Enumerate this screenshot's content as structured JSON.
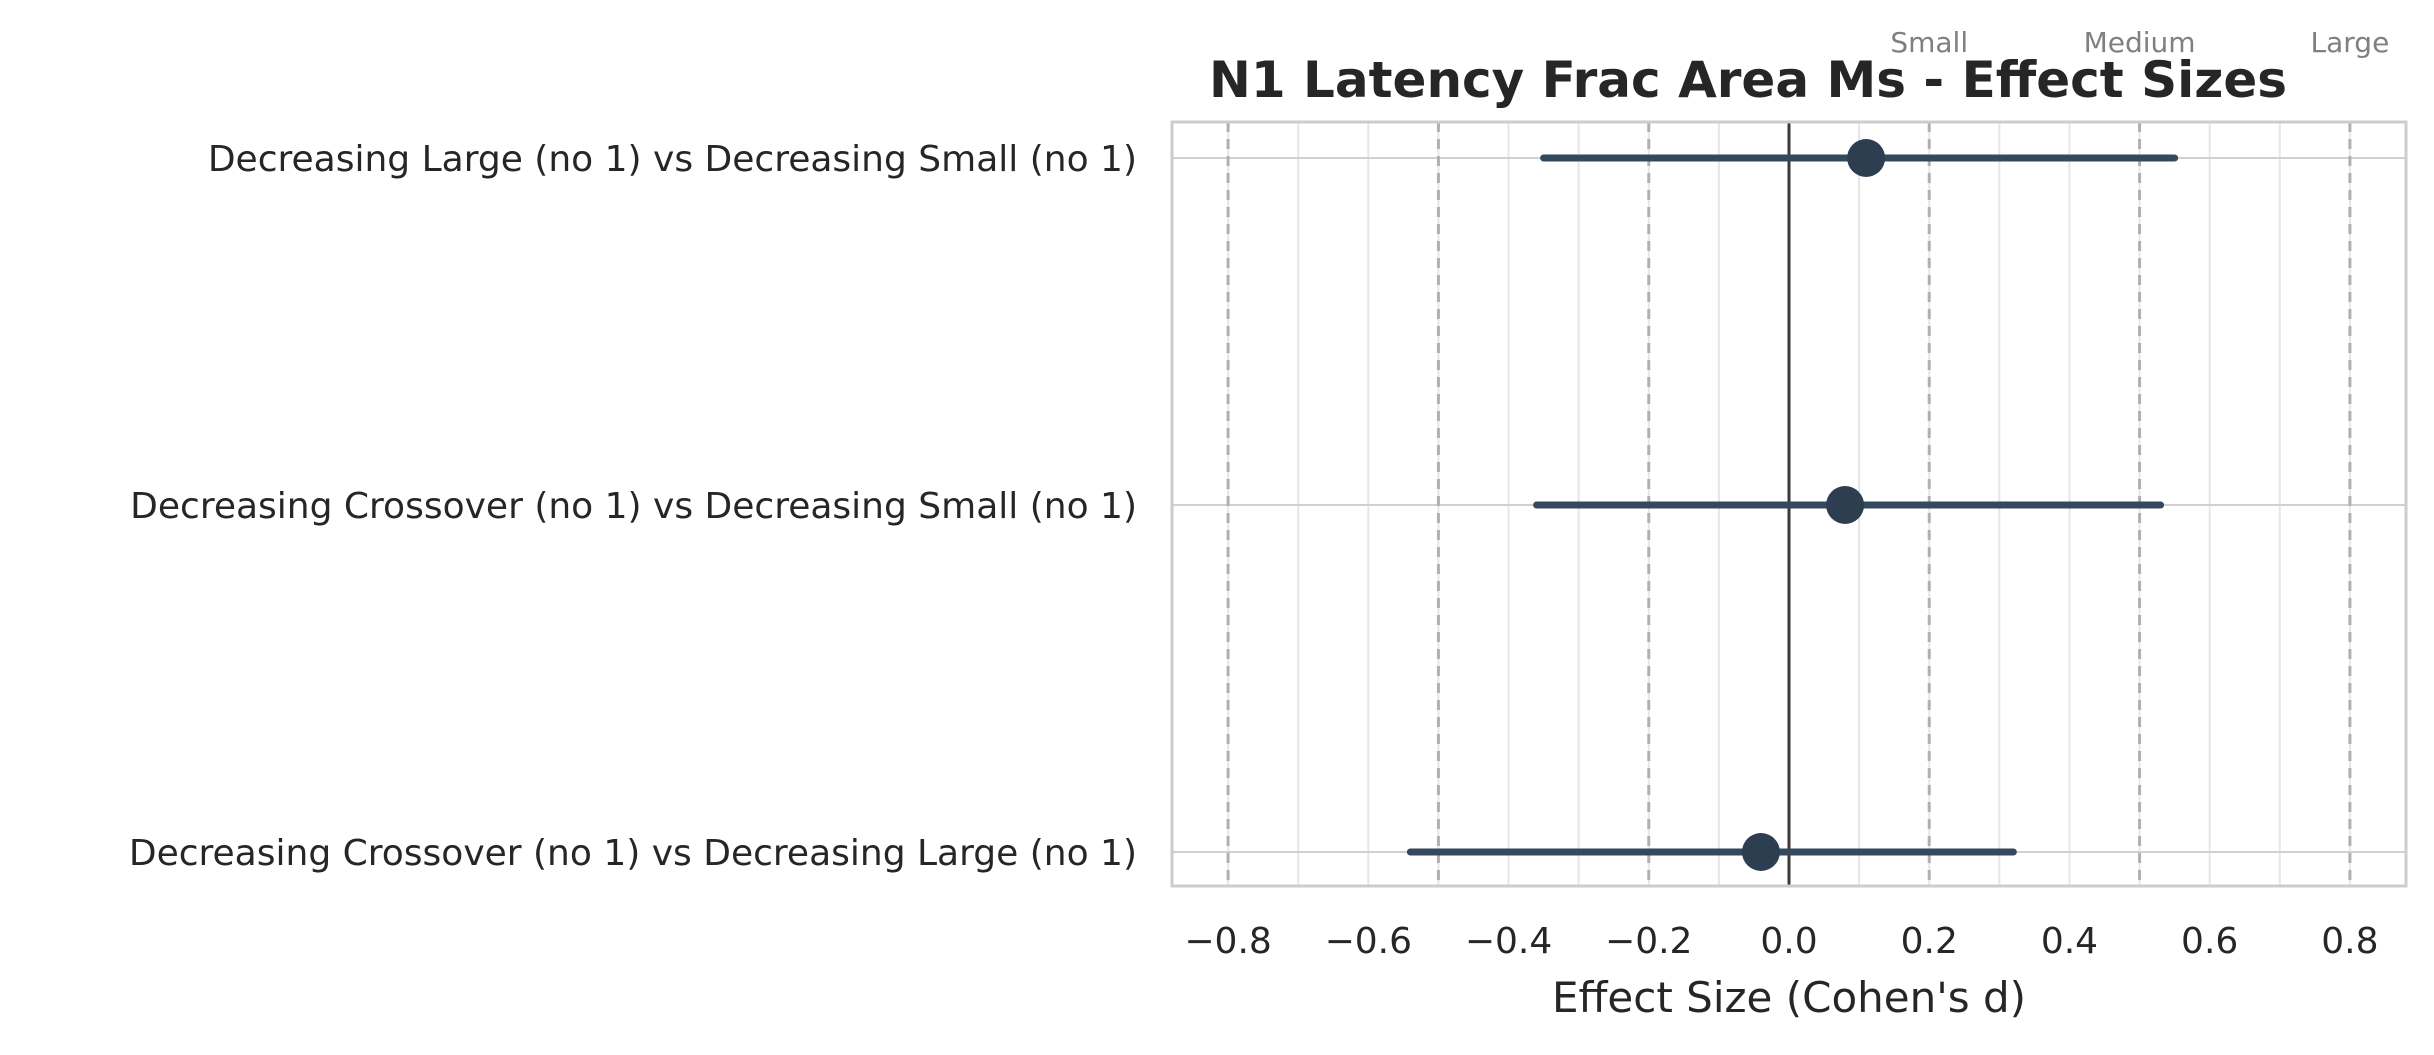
{
  "chart_data": {
    "type": "forest",
    "title": "N1 Latency Frac Area Ms - Effect Sizes",
    "xlabel": "Effect Size (Cohen's d)",
    "xlim": [
      -0.88,
      0.88
    ],
    "xticks": [
      -0.8,
      -0.6,
      -0.4,
      -0.2,
      0.0,
      0.2,
      0.4,
      0.6,
      0.8
    ],
    "xtick_labels": [
      "−0.8",
      "−0.6",
      "−0.4",
      "−0.2",
      "0.0",
      "0.2",
      "0.4",
      "0.6",
      "0.8"
    ],
    "grid": true,
    "zero_line": 0.0,
    "reference_lines": [
      {
        "value": -0.8,
        "label": ""
      },
      {
        "value": -0.5,
        "label": ""
      },
      {
        "value": -0.2,
        "label": ""
      },
      {
        "value": 0.2,
        "label": "Small"
      },
      {
        "value": 0.5,
        "label": "Medium"
      },
      {
        "value": 0.8,
        "label": "Large"
      }
    ],
    "comparisons": [
      {
        "label": "Decreasing Large (no 1) vs Decreasing Small (no 1)",
        "d": 0.11,
        "ci_low": -0.35,
        "ci_high": 0.55
      },
      {
        "label": "Decreasing Crossover (no 1) vs Decreasing Small (no 1)",
        "d": 0.08,
        "ci_low": -0.36,
        "ci_high": 0.53
      },
      {
        "label": "Decreasing Crossover (no 1) vs Decreasing Large (no 1)",
        "d": -0.04,
        "ci_low": -0.54,
        "ci_high": 0.32
      }
    ],
    "colors": {
      "point": "#2c3e50",
      "ci": "#34495e",
      "zero_line": "#3a3a3a",
      "ref_line": "#b0b0b0",
      "grid": "#e6e6e6",
      "frame": "#cccccc"
    }
  }
}
